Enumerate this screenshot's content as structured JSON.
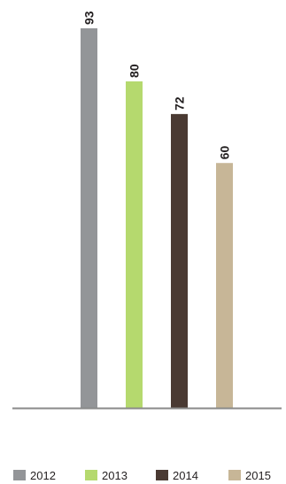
{
  "chart_data": {
    "type": "bar",
    "categories": [
      "2012",
      "2013",
      "2014",
      "2015"
    ],
    "values": [
      93,
      80,
      72,
      60
    ],
    "colors": [
      "#939598",
      "#b5d96e",
      "#4a3a33",
      "#c7b697"
    ],
    "axis_color": "#8a8a8a",
    "title": "",
    "xlabel": "",
    "ylabel": "",
    "ylim": [
      0,
      93
    ],
    "grid": false,
    "legend": {
      "placement": "bottom",
      "entries": [
        "2012",
        "2013",
        "2014",
        "2015"
      ]
    },
    "value_labels": "rotated-above-bars"
  }
}
